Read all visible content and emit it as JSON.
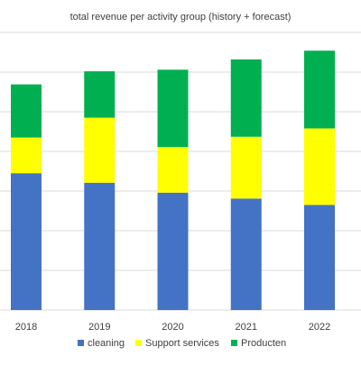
{
  "chart_data": {
    "type": "bar",
    "stacked": true,
    "title": "total revenue per activity group (history + forecast)",
    "xlabel": "",
    "ylabel": "",
    "categories": [
      "2018",
      "2019",
      "2020",
      "2021",
      "2022"
    ],
    "series": [
      {
        "name": "cleaning",
        "color": "#4472c4",
        "values": [
          34.5,
          32.1,
          29.6,
          28.1,
          26.5
        ]
      },
      {
        "name": "Support services",
        "color": "#ffff00",
        "values": [
          9.0,
          16.4,
          11.5,
          15.6,
          19.3
        ]
      },
      {
        "name": "Producten",
        "color": "#00b050",
        "values": [
          13.4,
          11.7,
          19.5,
          19.5,
          19.6
        ]
      }
    ],
    "ylim": [
      0,
      70
    ],
    "grid": true,
    "legend_position": "bottom"
  }
}
